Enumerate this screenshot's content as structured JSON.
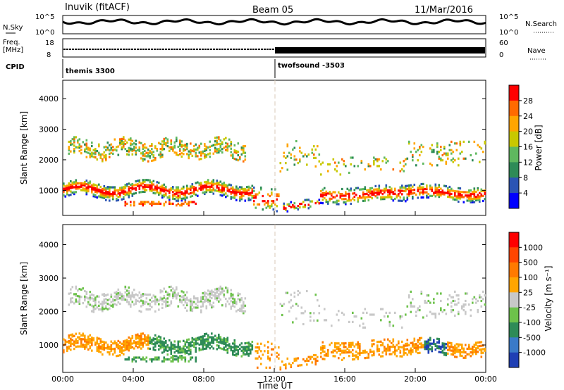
{
  "header": {
    "station": "Inuvik (fitACF)",
    "beam": "Beam 05",
    "date": "11/Mar/2016"
  },
  "top_panels": {
    "nsky_label": "N.Sky",
    "nsky_ticks": [
      "10^5",
      "10^0"
    ],
    "nsearch_label": "N.Search",
    "nsearch_ticks": [
      "10^5",
      "10^0"
    ],
    "freq_label_1": "Freq.",
    "freq_label_2": "[MHz]",
    "freq_ticks": [
      "18",
      "8"
    ],
    "nave_label": "Nave",
    "nave_ticks": [
      "60",
      "0"
    ],
    "cpid_label": "CPID",
    "cpid_modes": [
      {
        "name": "themis 3300",
        "start_hour": 0
      },
      {
        "name": "twofsound -3503",
        "start_hour": 12
      }
    ]
  },
  "chart_data": [
    {
      "type": "heatmap",
      "title": "Power",
      "xlabel": "",
      "ylabel": "Slant Range [km]",
      "x_range_hours": [
        0,
        24
      ],
      "xticks": [
        "00:00",
        "04:00",
        "08:00",
        "12:00",
        "16:00",
        "20:00",
        "00:00"
      ],
      "yticks": [
        1000,
        2000,
        3000,
        4000
      ],
      "ylim": [
        180,
        4600
      ],
      "colorbar": {
        "label": "Power [dB]",
        "ticks": [
          "4",
          "8",
          "12",
          "16",
          "20",
          "24",
          "28"
        ],
        "colors": [
          "#0000ff",
          "#2b54b4",
          "#2e8b57",
          "#5fb85f",
          "#c8c800",
          "#ffa500",
          "#ff6a00",
          "#ff0000"
        ]
      }
    },
    {
      "type": "heatmap",
      "title": "Velocity",
      "xlabel": "Time UT",
      "ylabel": "Slant Range [km]",
      "x_range_hours": [
        0,
        24
      ],
      "xticks": [
        "00:00",
        "04:00",
        "08:00",
        "12:00",
        "16:00",
        "20:00",
        "00:00"
      ],
      "yticks": [
        1000,
        2000,
        3000,
        4000
      ],
      "ylim": [
        180,
        4600
      ],
      "colorbar": {
        "label": "Velocity [m s⁻¹]",
        "ticks": [
          "1000",
          "500",
          "100",
          "25",
          "-25",
          "-100",
          "-500",
          "-1000"
        ],
        "colors": [
          "#1f3fb4",
          "#3a7ac8",
          "#2e8b57",
          "#6dc24b",
          "#c8c8c8",
          "#ffa500",
          "#ff7a00",
          "#ff4500",
          "#ff0000"
        ]
      }
    }
  ]
}
